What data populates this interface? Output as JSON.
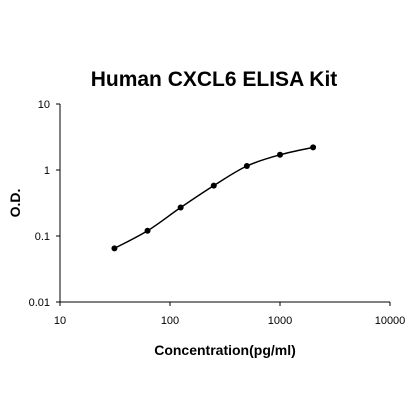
{
  "chart_data": {
    "type": "scatter",
    "title": "Human CXCL6 ELISA Kit",
    "x_label": "Concentration(pg/ml)",
    "y_label": "O.D.",
    "x": [
      31.25,
      62.5,
      125,
      250,
      500,
      1000,
      2000
    ],
    "values": [
      0.065,
      0.12,
      0.27,
      0.58,
      1.15,
      1.7,
      2.2
    ],
    "color": "#000000",
    "fit_line": true,
    "x_log": true,
    "y_log": true,
    "xlim": [
      10,
      10000
    ],
    "xticks": [
      10,
      100,
      1000,
      10000
    ],
    "ylim": [
      0.01,
      10
    ],
    "yticks": [
      0.01,
      0.1,
      1,
      10
    ]
  }
}
